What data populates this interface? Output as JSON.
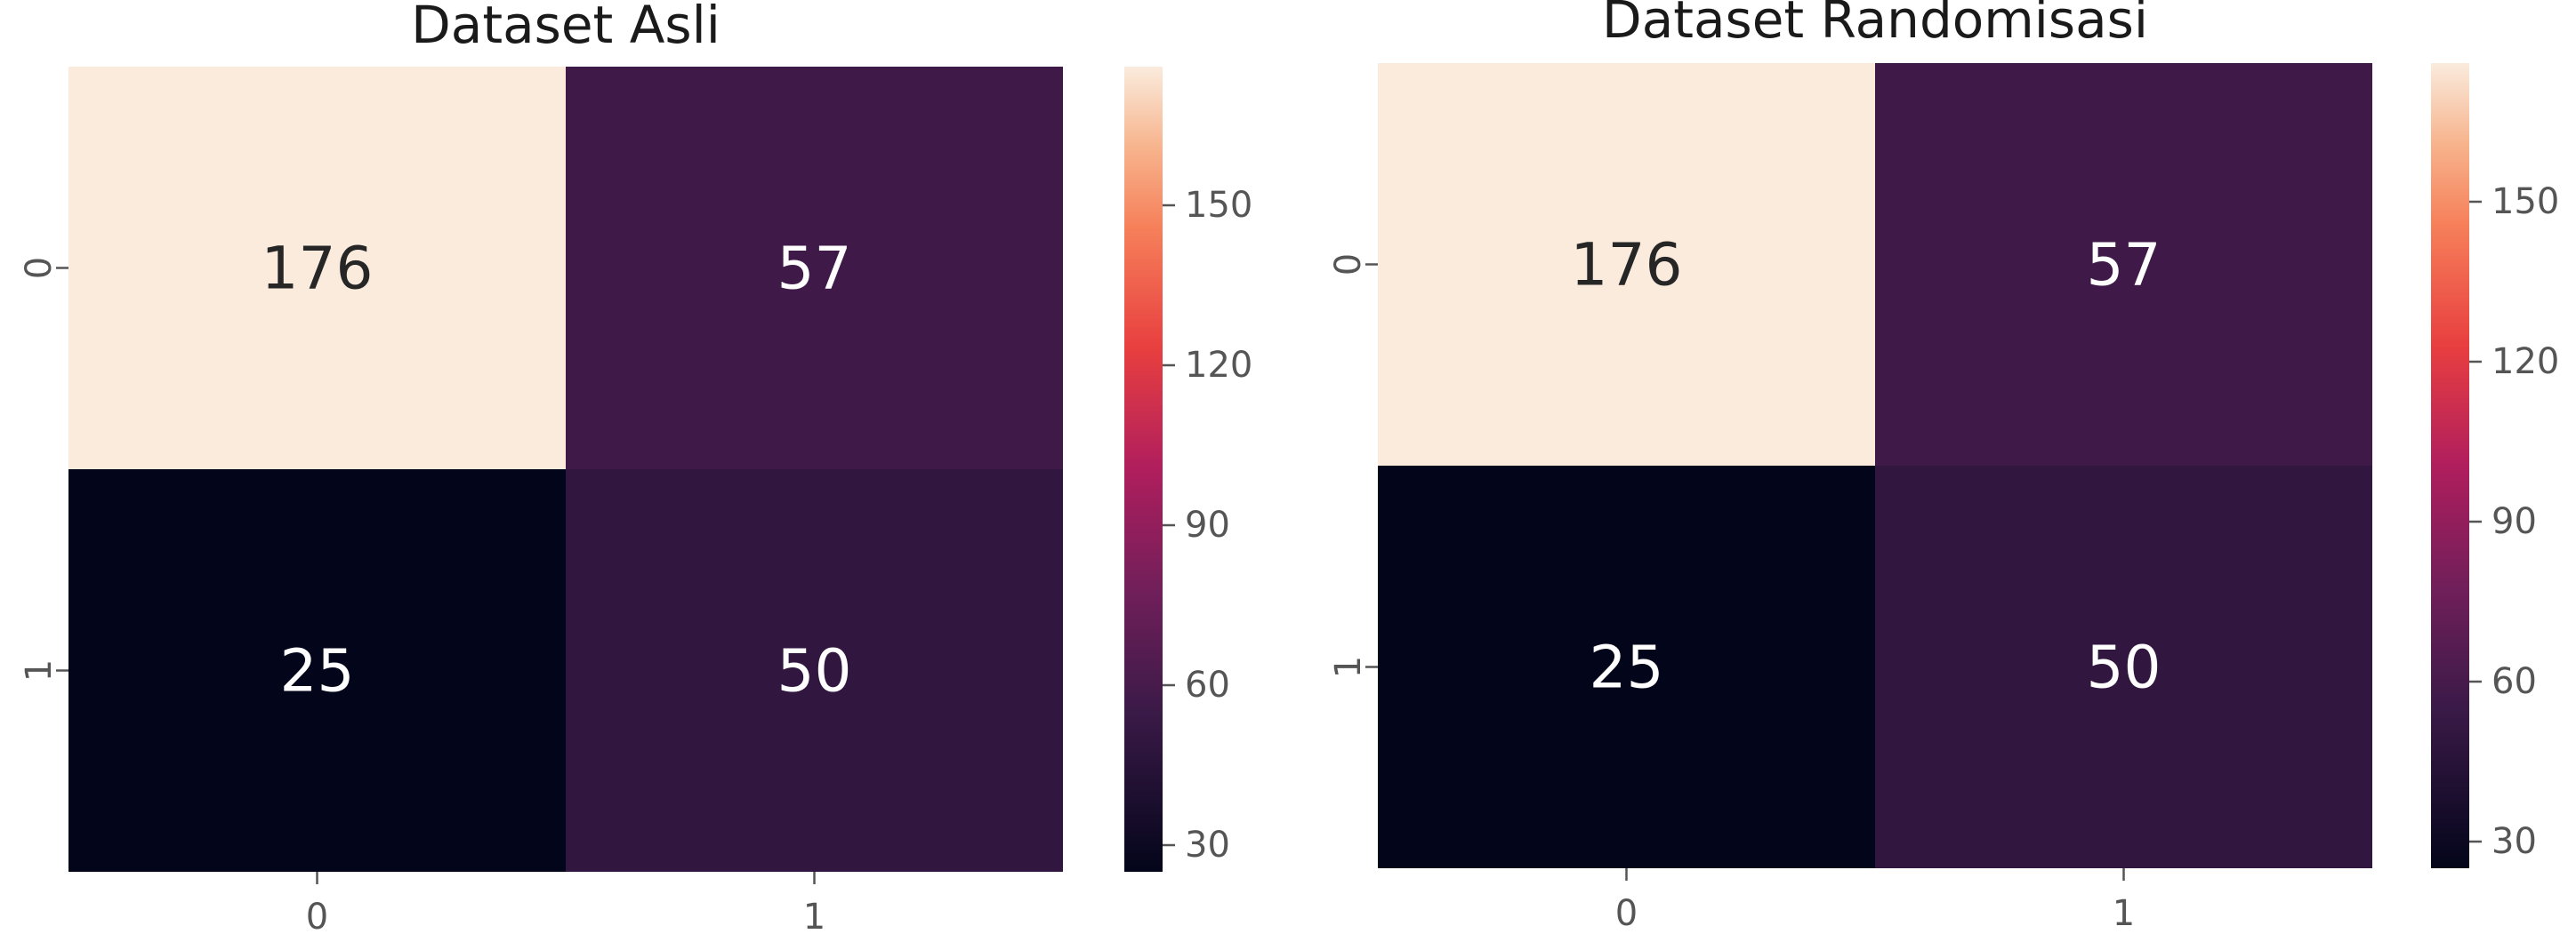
{
  "chart_data": [
    {
      "type": "heatmap",
      "title": "Dataset Asli",
      "row_labels": [
        "0",
        "1"
      ],
      "col_labels": [
        "0",
        "1"
      ],
      "values": [
        [
          176,
          57
        ],
        [
          25,
          50
        ]
      ],
      "colorbar": {
        "range": [
          25,
          176
        ],
        "ticks": [
          30,
          60,
          90,
          120,
          150
        ]
      },
      "colormap": "rocket"
    },
    {
      "type": "heatmap",
      "title": "Dataset Randomisasi",
      "row_labels": [
        "0",
        "1"
      ],
      "col_labels": [
        "0",
        "1"
      ],
      "values": [
        [
          176,
          57
        ],
        [
          25,
          50
        ]
      ],
      "colorbar": {
        "range": [
          25,
          176
        ],
        "ticks": [
          30,
          60,
          90,
          120,
          150
        ]
      },
      "colormap": "rocket"
    }
  ]
}
